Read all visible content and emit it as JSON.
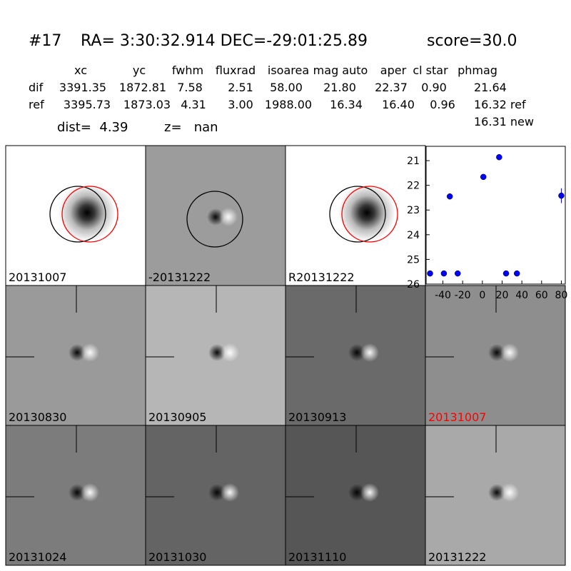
{
  "header": {
    "id": "#17",
    "coords": "RA= 3:30:32.914 DEC=-29:01:25.89",
    "score": "score=30.0"
  },
  "table": {
    "columns": [
      "xc",
      "yc",
      "fwhm",
      "fluxrad",
      "isoarea",
      "mag auto",
      "aper",
      "cl star",
      "phmag"
    ],
    "rows": [
      {
        "label": "dif",
        "cells": [
          "3391.35",
          "1872.81",
          "7.58",
          "2.51",
          "58.00",
          "21.80",
          "22.37",
          "0.90",
          "21.64"
        ]
      },
      {
        "label": "ref",
        "cells": [
          "3395.73",
          "1873.03",
          "4.31",
          "3.00",
          "1988.00",
          "16.34",
          "16.40",
          "0.96",
          "16.32 ref"
        ]
      }
    ],
    "extra": "16.31 new"
  },
  "dist": "dist=  4.39",
  "z": "z=   nan",
  "panels": [
    "20131007",
    "-20131222",
    "R20131222",
    "20130830",
    "20130905",
    "20130913",
    "20131007",
    "20131024",
    "20131030",
    "20131110",
    "20131222"
  ],
  "chart_data": {
    "type": "scatter",
    "color": "#0000ff",
    "x": [
      -53,
      -39,
      -33,
      -25,
      1,
      17,
      24,
      35,
      80
    ],
    "y": [
      25.57,
      25.57,
      22.45,
      25.57,
      21.66,
      20.86,
      25.57,
      25.57,
      22.42
    ],
    "yerr": [
      0.05,
      0.05,
      0.05,
      0.05,
      0.07,
      0.04,
      0.05,
      0.05,
      0.3
    ],
    "xlim": [
      -57,
      84
    ],
    "ylim": [
      26,
      20.42
    ],
    "xticks": [
      -40,
      -20,
      0,
      20,
      40,
      60,
      80
    ],
    "yticks": [
      21,
      22,
      23,
      24,
      25,
      26
    ]
  }
}
